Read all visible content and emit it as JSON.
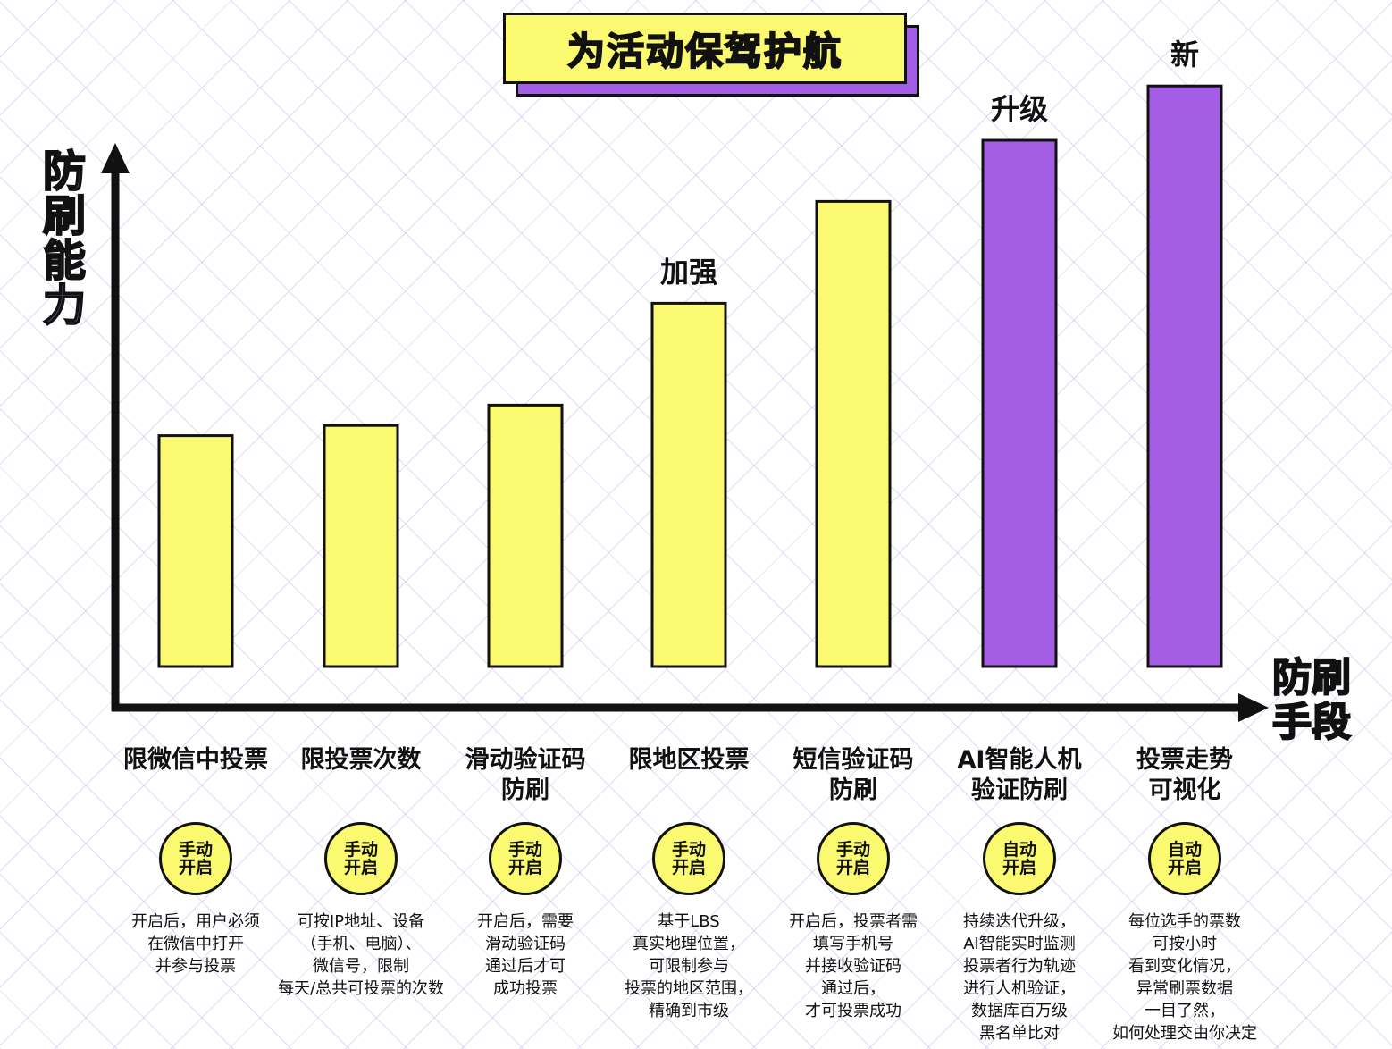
{
  "title": "为活动保驾护航",
  "colors": {
    "yellow": "#faf96f",
    "purple": "#a45ee5",
    "outline": "#111111"
  },
  "chart_data": {
    "type": "bar",
    "title": "为活动保驾护航",
    "ylabel": "防刷能力",
    "xlabel": "防刷手段",
    "ylim": [
      0,
      100
    ],
    "grid": false,
    "categories": [
      "限微信中投票",
      "限投票次数",
      "滑动验证码防刷",
      "限地区投票",
      "短信验证码防刷",
      "AI智能人机验证防刷",
      "投票走势可视化"
    ],
    "values": [
      34,
      35.5,
      38.5,
      53.5,
      68.5,
      77.5,
      85.5
    ],
    "series_colors": [
      "#faf96f",
      "#faf96f",
      "#faf96f",
      "#faf96f",
      "#faf96f",
      "#a45ee5",
      "#a45ee5"
    ],
    "annotations": [
      "",
      "",
      "",
      "加强",
      "",
      "升级",
      "新"
    ]
  },
  "items": [
    {
      "label_lines": [
        "限微信中投票"
      ],
      "mode_lines": [
        "手动",
        "开启"
      ],
      "desc_lines": [
        "开启后，用户必须",
        "在微信中打开",
        "并参与投票"
      ]
    },
    {
      "label_lines": [
        "限投票次数"
      ],
      "mode_lines": [
        "手动",
        "开启"
      ],
      "desc_lines": [
        "可按IP地址、设备",
        "（手机、电脑）、",
        "微信号，限制",
        "每天/总共可投票的次数"
      ]
    },
    {
      "label_lines": [
        "滑动验证码",
        "防刷"
      ],
      "mode_lines": [
        "手动",
        "开启"
      ],
      "desc_lines": [
        "开启后，需要",
        "滑动验证码",
        "通过后才可",
        "成功投票"
      ]
    },
    {
      "label_lines": [
        "限地区投票"
      ],
      "mode_lines": [
        "手动",
        "开启"
      ],
      "desc_lines": [
        "基于LBS",
        "真实地理位置，",
        "可限制参与",
        "投票的地区范围，",
        "精确到市级"
      ]
    },
    {
      "label_lines": [
        "短信验证码",
        "防刷"
      ],
      "mode_lines": [
        "手动",
        "开启"
      ],
      "desc_lines": [
        "开启后，投票者需",
        "填写手机号",
        "并接收验证码",
        "通过后，",
        "才可投票成功"
      ]
    },
    {
      "label_lines": [
        "AI智能人机",
        "验证防刷"
      ],
      "mode_lines": [
        "自动",
        "开启"
      ],
      "desc_lines": [
        "持续迭代升级，",
        "AI智能实时监测",
        "投票者行为轨迹",
        "进行人机验证，",
        "数据库百万级",
        "黑名单比对"
      ]
    },
    {
      "label_lines": [
        "投票走势",
        "可视化"
      ],
      "mode_lines": [
        "自动",
        "开启"
      ],
      "desc_lines": [
        "每位选手的票数",
        "可按小时",
        "看到变化情况，",
        "异常刷票数据",
        "一目了然，",
        "如何处理交由你决定"
      ]
    }
  ]
}
